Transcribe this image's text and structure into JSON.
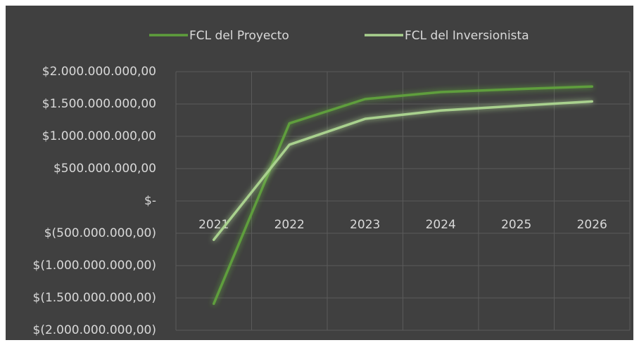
{
  "chart_data": {
    "type": "line",
    "categories": [
      "2021",
      "2022",
      "2023",
      "2024",
      "2025",
      "2026"
    ],
    "series": [
      {
        "name": "FCL del Proyecto",
        "color": "#5e9e3c",
        "values": [
          -1590000000,
          1200000000,
          1576000000,
          1685000000,
          1730000000,
          1770000000
        ]
      },
      {
        "name": "FCL del Inversionista",
        "color": "#a9d18e",
        "values": [
          -600000000,
          870000000,
          1270000000,
          1400000000,
          1470000000,
          1540000000
        ]
      }
    ],
    "ylim": [
      -2000000000,
      2000000000
    ],
    "yticks": [
      {
        "value": -2000000000,
        "label": "$(2.000.000.000,00)"
      },
      {
        "value": -1500000000,
        "label": "$(1.500.000.000,00)"
      },
      {
        "value": -1000000000,
        "label": "$(1.000.000.000,00)"
      },
      {
        "value": -500000000,
        "label": "$(500.000.000,00)"
      },
      {
        "value": 0,
        "label": "$-"
      },
      {
        "value": 500000000,
        "label": "$500.000.000,00"
      },
      {
        "value": 1000000000,
        "label": "$1.000.000.000,00"
      },
      {
        "value": 1500000000,
        "label": "$1.500.000.000,00"
      },
      {
        "value": 2000000000,
        "label": "$2.000.000.000,00"
      }
    ],
    "grid": true,
    "legend": "top"
  }
}
